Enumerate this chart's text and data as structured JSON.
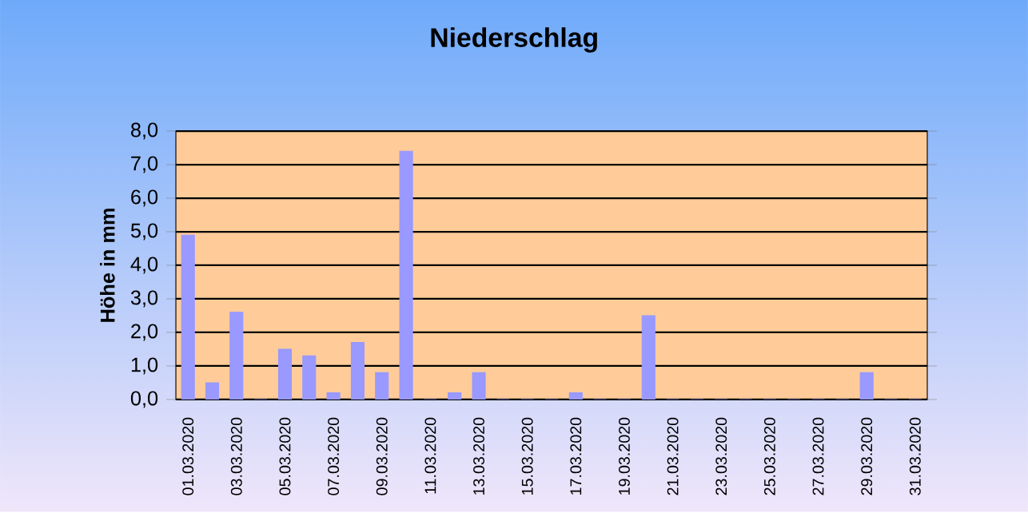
{
  "chart_data": {
    "type": "bar",
    "title": "Niederschlag",
    "ylabel": "Höhe in mm",
    "categories": [
      "01.03.2020",
      null,
      "03.03.2020",
      null,
      "05.03.2020",
      null,
      "07.03.2020",
      null,
      "09.03.2020",
      null,
      "11.03.2020",
      null,
      "13.03.2020",
      null,
      "15.03.2020",
      null,
      "17.03.2020",
      null,
      "19.03.2020",
      null,
      "21.03.2020",
      null,
      "23.03.2020",
      null,
      "25.03.2020",
      null,
      "27.03.2020",
      null,
      "29.03.2020",
      null,
      "31.03.2020"
    ],
    "values": [
      4.9,
      0.5,
      2.6,
      0,
      1.5,
      1.3,
      0.2,
      1.7,
      0.8,
      7.4,
      0,
      0.2,
      0.8,
      0,
      0,
      0,
      0.2,
      0,
      0,
      2.5,
      0,
      0,
      0,
      0,
      0,
      0,
      0,
      0,
      0.8,
      0,
      0
    ],
    "color": "#9999ff",
    "ylim": [
      0,
      8
    ],
    "yticks": [
      {
        "value": 0,
        "label": "0,0"
      },
      {
        "value": 1,
        "label": "1,0"
      },
      {
        "value": 2,
        "label": "2,0"
      },
      {
        "value": 3,
        "label": "3,0"
      },
      {
        "value": 4,
        "label": "4,0"
      },
      {
        "value": 5,
        "label": "5,0"
      },
      {
        "value": 6,
        "label": "6,0"
      },
      {
        "value": 7,
        "label": "7,0"
      },
      {
        "value": 8,
        "label": "8,0"
      }
    ],
    "grid": "y"
  }
}
